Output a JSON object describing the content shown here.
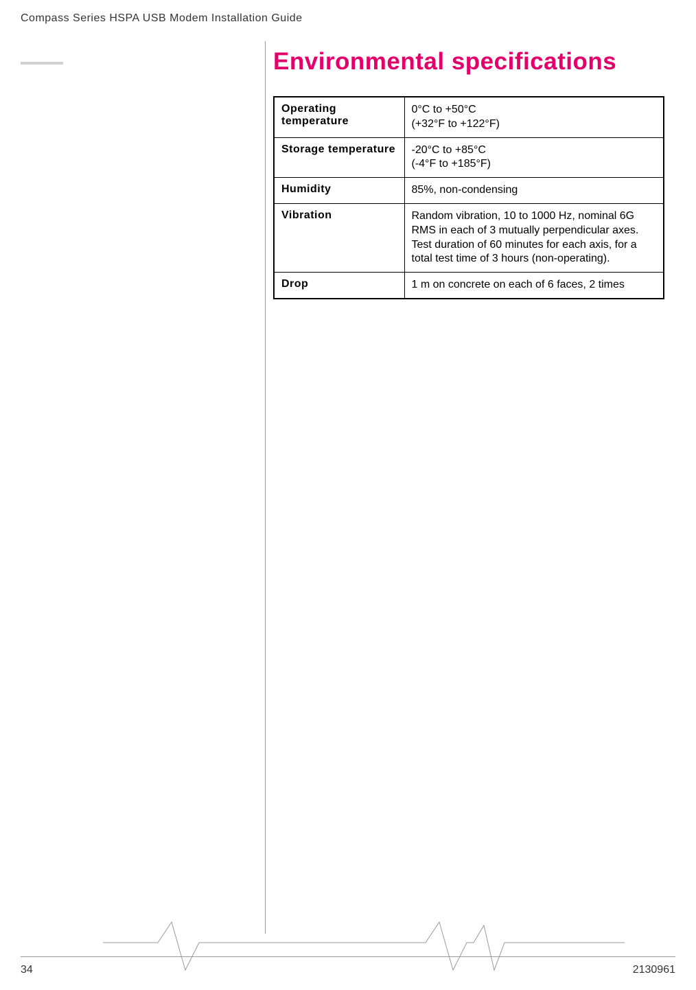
{
  "header": {
    "title": "Compass Series HSPA USB Modem Installation Guide"
  },
  "section": {
    "heading": "Environmental specifications"
  },
  "specs_table": {
    "columns": [
      "label",
      "value"
    ],
    "col_widths": [
      "190px",
      "380px"
    ],
    "border_color": "#000000",
    "border_width": 2,
    "inner_border_width": 1,
    "rows": [
      {
        "label": "Operating temperature",
        "value": "0°C to +50°C\n(+32°F to +122°F)"
      },
      {
        "label": "Storage temperature",
        "value": "-20°C to +85°C\n(-4°F to +185°F)"
      },
      {
        "label": "Humidity",
        "value": "85%, non-condensing"
      },
      {
        "label": "Vibration",
        "value": "Random vibration, 10 to 1000 Hz, nominal 6G RMS in each of 3 mutually perpendicular axes. Test duration of 60 minutes for each axis, for a total test time of 3 hours (non-operating)."
      },
      {
        "label": "Drop",
        "value": "1 m on concrete on each of 6 faces, 2 times"
      }
    ]
  },
  "footer": {
    "page_number": "34",
    "doc_number": "2130961"
  },
  "colors": {
    "heading_color": "#e2006a",
    "text_color": "#333333",
    "line_color": "#999999",
    "background": "#ffffff"
  },
  "typography": {
    "heading_fontsize": 35,
    "body_fontsize": 16,
    "font_family": "Arial, Helvetica, sans-serif"
  }
}
